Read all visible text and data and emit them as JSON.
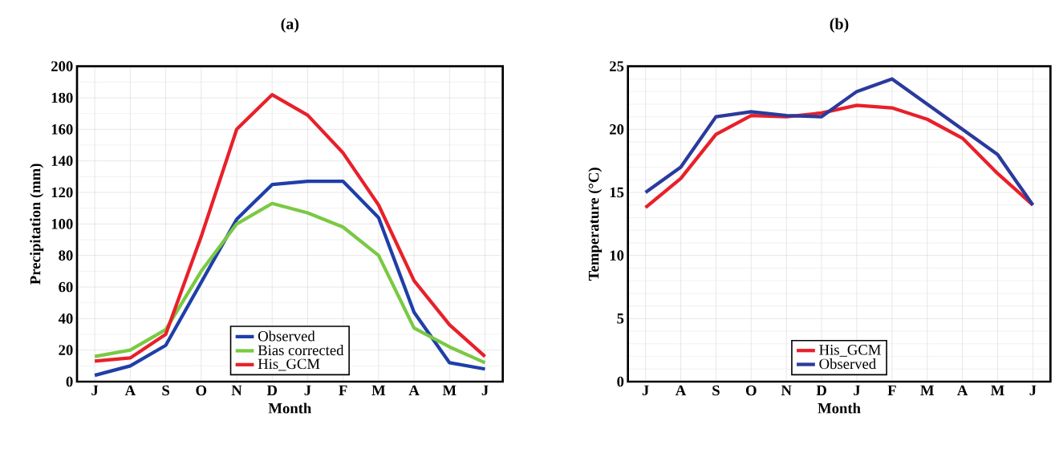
{
  "chart_data": [
    {
      "type": "line",
      "title": "(a)",
      "xlabel": "Month",
      "ylabel": "Precipitation (mm)",
      "categories": [
        "J",
        "A",
        "S",
        "O",
        "N",
        "D",
        "J",
        "F",
        "M",
        "A",
        "M",
        "J"
      ],
      "series": [
        {
          "name": "Observed",
          "color": "#1f3fa8",
          "values": [
            4,
            10,
            23,
            63,
            103,
            125,
            127,
            127,
            104,
            44,
            12,
            8
          ]
        },
        {
          "name": "Bias corrected",
          "color": "#7ac943",
          "values": [
            16,
            20,
            33,
            70,
            100,
            113,
            107,
            98,
            80,
            34,
            22,
            12
          ]
        },
        {
          "name": "His_GCM",
          "color": "#e8202a",
          "values": [
            13,
            15,
            30,
            92,
            160,
            182,
            169,
            145,
            112,
            64,
            36,
            16
          ]
        }
      ],
      "ylim": [
        0,
        200
      ],
      "yticks": [
        0,
        20,
        40,
        60,
        80,
        100,
        120,
        140,
        160,
        180,
        200
      ],
      "grid": true,
      "legend": "bottom"
    },
    {
      "type": "line",
      "title": "(b)",
      "xlabel": "Month",
      "ylabel": "Temperature (°C)",
      "categories": [
        "J",
        "A",
        "S",
        "O",
        "N",
        "D",
        "J",
        "F",
        "M",
        "A",
        "M",
        "J"
      ],
      "series": [
        {
          "name": "His_GCM",
          "color": "#e8202a",
          "values": [
            13.8,
            16.1,
            19.6,
            21.1,
            21,
            21.3,
            21.9,
            21.7,
            20.8,
            19.3,
            16.5,
            14
          ]
        },
        {
          "name": "Observed",
          "color": "#2b3a9c",
          "values": [
            15,
            17,
            21,
            21.4,
            21.1,
            21,
            23,
            24,
            22,
            20,
            18,
            14
          ]
        }
      ],
      "ylim": [
        0,
        25
      ],
      "yticks": [
        0,
        5,
        10,
        15,
        20,
        25
      ],
      "grid": true,
      "legend": "bottom"
    }
  ]
}
